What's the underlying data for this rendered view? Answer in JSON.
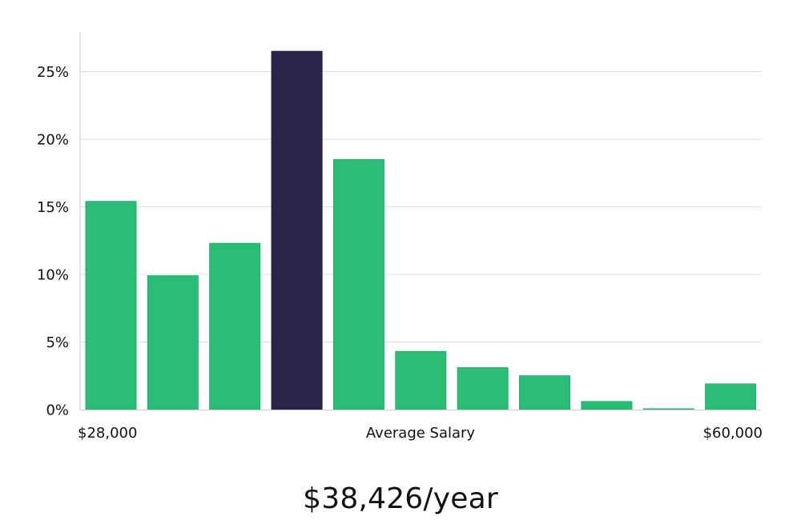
{
  "chart_data": {
    "type": "bar",
    "y_tick_labels": [
      "0%",
      "5%",
      "10%",
      "15%",
      "20%",
      "25%"
    ],
    "ylim": [
      0,
      28
    ],
    "grid": true,
    "values": [
      15.4,
      9.9,
      12.3,
      26.5,
      18.5,
      4.3,
      3.1,
      2.5,
      0.6,
      0.05,
      1.9
    ],
    "highlight_index": 3,
    "colors": {
      "bar": "#2bbd76",
      "highlight": "#29264a",
      "grid": "#dddddd",
      "axis": "#cccccc"
    },
    "x_labels": {
      "left": "$28,000",
      "center": "Average Salary",
      "right": "$60,000"
    }
  },
  "summary": {
    "salary_text": "$38,426/year"
  }
}
